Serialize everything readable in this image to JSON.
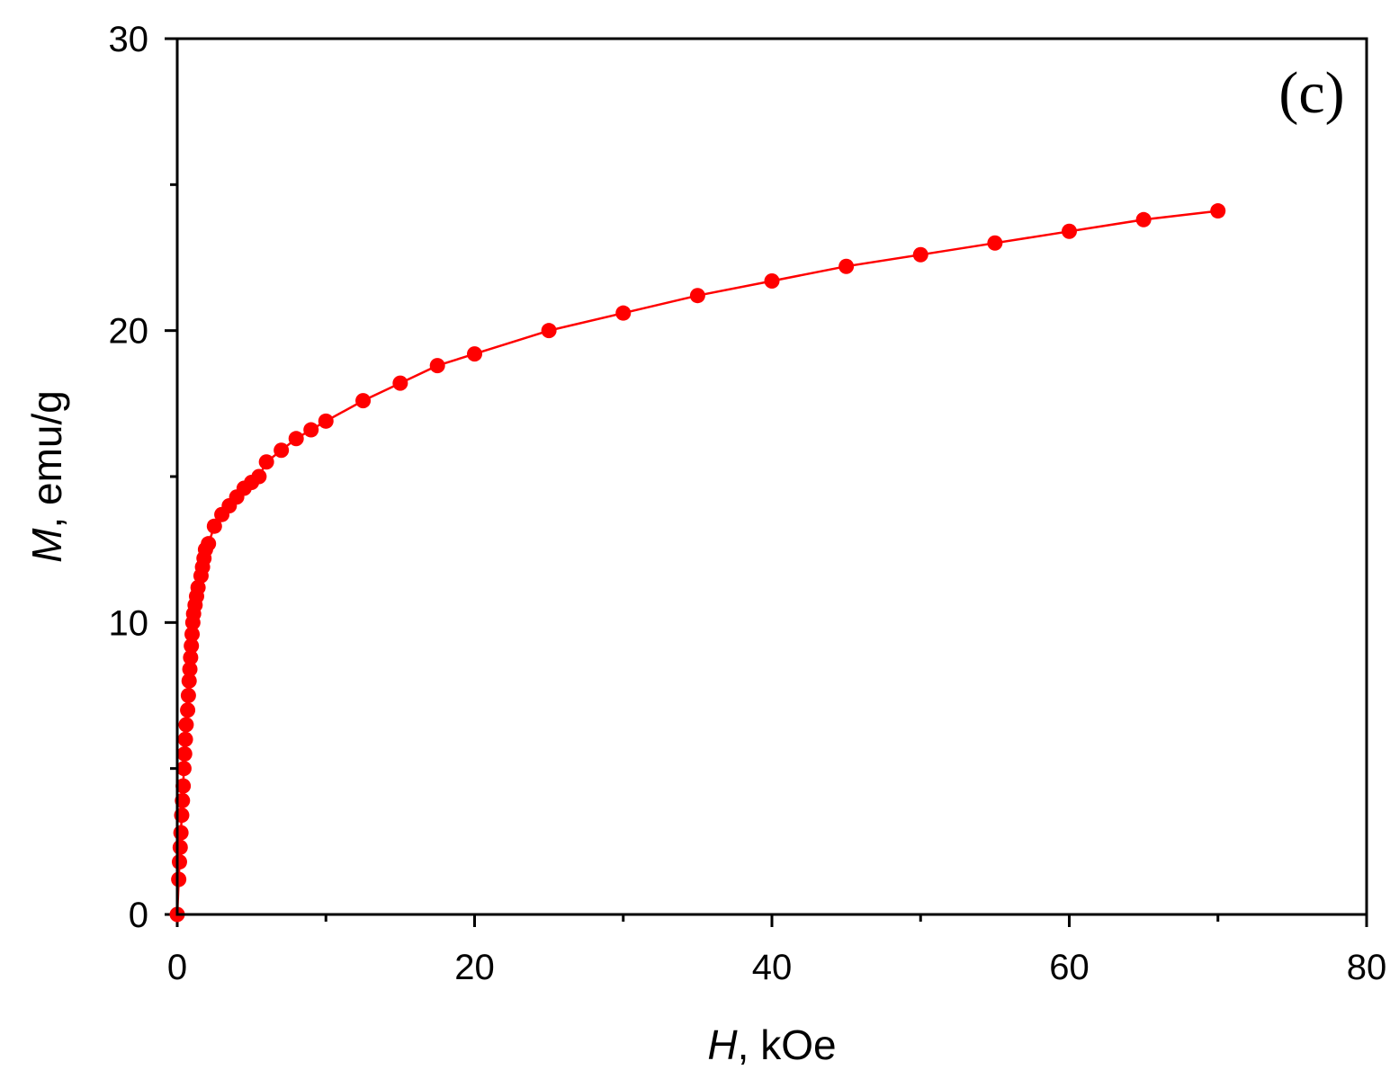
{
  "chart_data": {
    "type": "line",
    "panel_label": "(c)",
    "xlabel": {
      "symbol": "H",
      "unit": ", kOe"
    },
    "ylabel": {
      "symbol": "M",
      "unit": ", emu/g"
    },
    "xlim": [
      0,
      80
    ],
    "ylim": [
      0,
      30
    ],
    "x_major_ticks": [
      0,
      20,
      40,
      60,
      80
    ],
    "x_minor_ticks": [
      10,
      30,
      50,
      70
    ],
    "y_major_ticks": [
      0,
      10,
      20,
      30
    ],
    "y_minor_ticks": [
      5,
      15,
      25
    ],
    "grid": false,
    "legend": "none",
    "series": [
      {
        "color": "#ff0000",
        "marker": "circle",
        "line": true,
        "points": [
          [
            0.0,
            0.0
          ],
          [
            0.1,
            1.2
          ],
          [
            0.15,
            1.8
          ],
          [
            0.2,
            2.3
          ],
          [
            0.25,
            2.8
          ],
          [
            0.3,
            3.4
          ],
          [
            0.35,
            3.9
          ],
          [
            0.4,
            4.4
          ],
          [
            0.45,
            5.0
          ],
          [
            0.5,
            5.5
          ],
          [
            0.55,
            6.0
          ],
          [
            0.6,
            6.5
          ],
          [
            0.7,
            7.0
          ],
          [
            0.75,
            7.5
          ],
          [
            0.8,
            8.0
          ],
          [
            0.85,
            8.4
          ],
          [
            0.9,
            8.8
          ],
          [
            0.95,
            9.2
          ],
          [
            1.0,
            9.6
          ],
          [
            1.05,
            10.0
          ],
          [
            1.1,
            10.3
          ],
          [
            1.2,
            10.6
          ],
          [
            1.3,
            10.9
          ],
          [
            1.4,
            11.2
          ],
          [
            1.6,
            11.6
          ],
          [
            1.7,
            11.9
          ],
          [
            1.8,
            12.2
          ],
          [
            1.9,
            12.5
          ],
          [
            2.1,
            12.7
          ],
          [
            2.5,
            13.3
          ],
          [
            3.0,
            13.7
          ],
          [
            3.5,
            14.0
          ],
          [
            4.0,
            14.3
          ],
          [
            4.5,
            14.6
          ],
          [
            5.0,
            14.8
          ],
          [
            5.5,
            15.0
          ],
          [
            6.0,
            15.5
          ],
          [
            7.0,
            15.9
          ],
          [
            8.0,
            16.3
          ],
          [
            9.0,
            16.6
          ],
          [
            10.0,
            16.9
          ],
          [
            12.5,
            17.6
          ],
          [
            15.0,
            18.2
          ],
          [
            17.5,
            18.8
          ],
          [
            20.0,
            19.2
          ],
          [
            25.0,
            20.0
          ],
          [
            30.0,
            20.6
          ],
          [
            35.0,
            21.2
          ],
          [
            40.0,
            21.7
          ],
          [
            45.0,
            22.2
          ],
          [
            50.0,
            22.6
          ],
          [
            55.0,
            23.0
          ],
          [
            60.0,
            23.4
          ],
          [
            65.0,
            23.8
          ],
          [
            70.0,
            24.1
          ]
        ]
      }
    ]
  }
}
